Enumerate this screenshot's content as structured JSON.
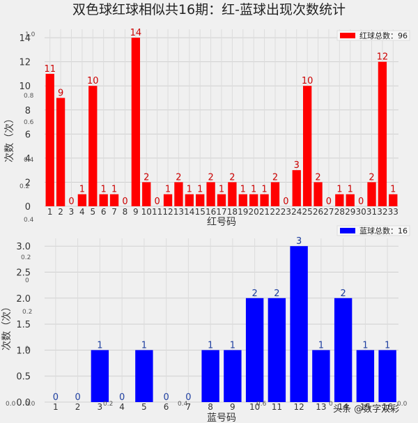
{
  "title": "双色球红球相似共16期：红-蓝球出现次数统计",
  "watermark": "头条 @数字双彩",
  "chart_data": [
    {
      "type": "bar",
      "name": "red",
      "color": "#ff0000",
      "label_color": "#cc0000",
      "legend": "红球总数：96",
      "legend_placement": "top-right",
      "xlabel": "红号码",
      "ylabel": "次数（次）",
      "ylim": [
        0,
        14.7
      ],
      "yticks": [
        0,
        2,
        4,
        6,
        8,
        10,
        12,
        14
      ],
      "grid": true,
      "categories": [
        "1",
        "2",
        "3",
        "4",
        "5",
        "6",
        "7",
        "8",
        "9",
        "10",
        "11",
        "12",
        "13",
        "14",
        "15",
        "16",
        "17",
        "18",
        "19",
        "20",
        "21",
        "22",
        "23",
        "24",
        "25",
        "26",
        "27",
        "28",
        "29",
        "30",
        "31",
        "32",
        "33"
      ],
      "values": [
        11,
        9,
        0,
        1,
        10,
        1,
        1,
        0,
        14,
        2,
        0,
        1,
        2,
        1,
        1,
        2,
        1,
        2,
        1,
        1,
        1,
        2,
        0,
        3,
        10,
        2,
        0,
        1,
        1,
        0,
        2,
        12,
        1
      ]
    },
    {
      "type": "bar",
      "name": "blue",
      "color": "#0000ff",
      "label_color": "#1f3fa0",
      "legend": "蓝球总数：16",
      "legend_placement": "top-right",
      "xlabel": "蓝号码",
      "ylabel": "次数（次）",
      "ylim": [
        0,
        3.15
      ],
      "yticks": [
        "0.0",
        "0.5",
        "1.0",
        "1.5",
        "2.0",
        "2.5",
        "3.0"
      ],
      "grid": true,
      "categories": [
        "1",
        "2",
        "3",
        "4",
        "5",
        "6",
        "7",
        "8",
        "9",
        "10",
        "11",
        "12",
        "13",
        "14",
        "15",
        "16"
      ],
      "values": [
        0,
        0,
        1,
        0,
        1,
        0,
        0,
        1,
        1,
        2,
        2,
        3,
        1,
        2,
        1,
        1
      ]
    }
  ],
  "ghost_texts": [
    {
      "text": "1.0"
    },
    {
      "text": "0.8"
    },
    {
      "text": "0.6"
    },
    {
      "text": "0.4"
    },
    {
      "text": "0.2"
    },
    {
      "text": "0.4"
    },
    {
      "text": "0.2"
    },
    {
      "text": "0"
    },
    {
      "text": "0.2"
    },
    {
      "text": "0"
    },
    {
      "text": "0.0"
    },
    {
      "text": "0.2"
    },
    {
      "text": "0.4"
    },
    {
      "text": "0.6"
    },
    {
      "text": "0"
    },
    {
      "text": "0.0"
    },
    {
      "text": "0.0"
    }
  ]
}
